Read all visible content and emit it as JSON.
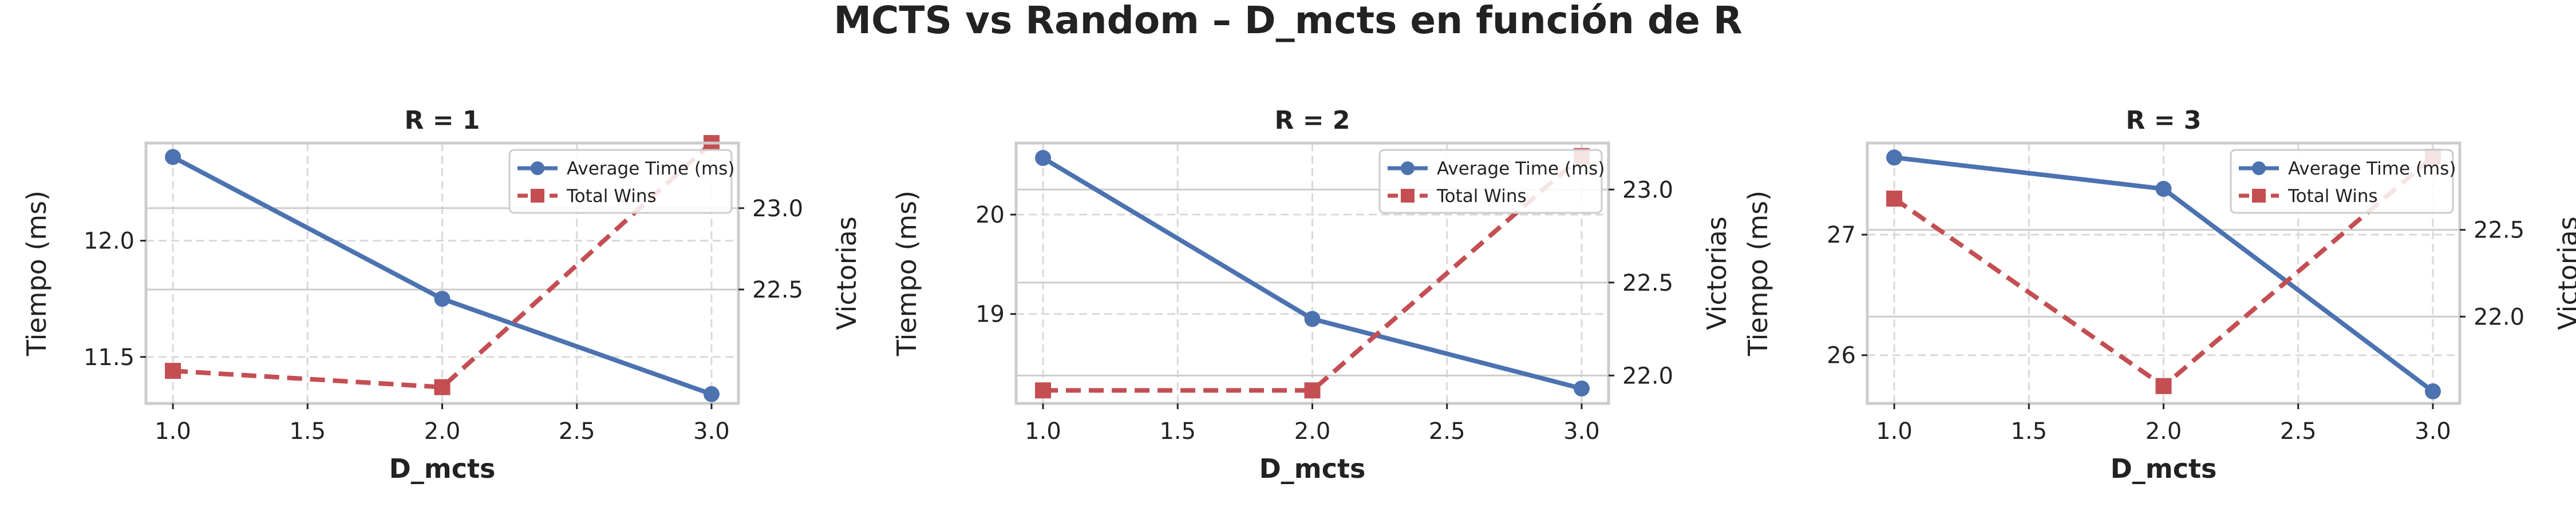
{
  "figure": {
    "title": "MCTS vs Random – D_mcts en función de R"
  },
  "colors": {
    "time_series": "#4c72b0",
    "wins_series": "#c44e52",
    "axes_edge": "#cccccc",
    "grid": "#d9d9d9",
    "text": "#222222"
  },
  "chart_data": [
    {
      "type": "line",
      "title": "R = 1",
      "xlabel": "D_mcts",
      "ylabel": "Tiempo (ms)",
      "y2label": "Victorias",
      "x": [
        1.0,
        2.0,
        3.0
      ],
      "xlim": [
        0.9,
        3.1
      ],
      "xticks": [
        "1.0",
        "1.5",
        "2.0",
        "2.5",
        "3.0"
      ],
      "ylim": [
        11.3,
        12.42
      ],
      "yticks": [
        "11.5",
        "12.0"
      ],
      "y2lim": [
        21.8,
        23.4
      ],
      "y2ticks": [
        "22.5",
        "23.0"
      ],
      "grid": true,
      "legend_position": "upper-right",
      "series": [
        {
          "name": "Average Time (ms)",
          "axis": "left",
          "marker": "circle",
          "style": "solid",
          "values": [
            12.36,
            11.75,
            11.34
          ]
        },
        {
          "name": "Total Wins",
          "axis": "right",
          "marker": "square",
          "style": "dashed",
          "values": [
            22.0,
            21.9,
            23.4
          ]
        }
      ]
    },
    {
      "type": "line",
      "title": "R = 2",
      "xlabel": "D_mcts",
      "ylabel": "Tiempo (ms)",
      "y2label": "Victorias",
      "x": [
        1.0,
        2.0,
        3.0
      ],
      "xlim": [
        0.9,
        3.1
      ],
      "xticks": [
        "1.0",
        "1.5",
        "2.0",
        "2.5",
        "3.0"
      ],
      "ylim": [
        18.1,
        20.72
      ],
      "yticks": [
        "19",
        "20"
      ],
      "y2lim": [
        21.85,
        23.25
      ],
      "y2ticks": [
        "22.0",
        "22.5",
        "23.0"
      ],
      "grid": true,
      "legend_position": "upper-right",
      "series": [
        {
          "name": "Average Time (ms)",
          "axis": "left",
          "marker": "circle",
          "style": "solid",
          "values": [
            20.57,
            18.95,
            18.25
          ]
        },
        {
          "name": "Total Wins",
          "axis": "right",
          "marker": "square",
          "style": "dashed",
          "values": [
            21.92,
            21.92,
            23.18
          ]
        }
      ]
    },
    {
      "type": "line",
      "title": "R = 3",
      "xlabel": "D_mcts",
      "ylabel": "Tiempo (ms)",
      "y2label": "Victorias",
      "x": [
        1.0,
        2.0,
        3.0
      ],
      "xlim": [
        0.9,
        3.1
      ],
      "xticks": [
        "1.0",
        "1.5",
        "2.0",
        "2.5",
        "3.0"
      ],
      "ylim": [
        25.6,
        27.76
      ],
      "yticks": [
        "26",
        "27"
      ],
      "y2lim": [
        21.5,
        23.0
      ],
      "y2ticks": [
        "22.0",
        "22.5"
      ],
      "grid": true,
      "legend_position": "upper-right",
      "series": [
        {
          "name": "Average Time (ms)",
          "axis": "left",
          "marker": "circle",
          "style": "solid",
          "values": [
            27.64,
            27.38,
            25.7
          ]
        },
        {
          "name": "Total Wins",
          "axis": "right",
          "marker": "square",
          "style": "dashed",
          "values": [
            22.68,
            21.6,
            22.92
          ]
        }
      ]
    }
  ]
}
